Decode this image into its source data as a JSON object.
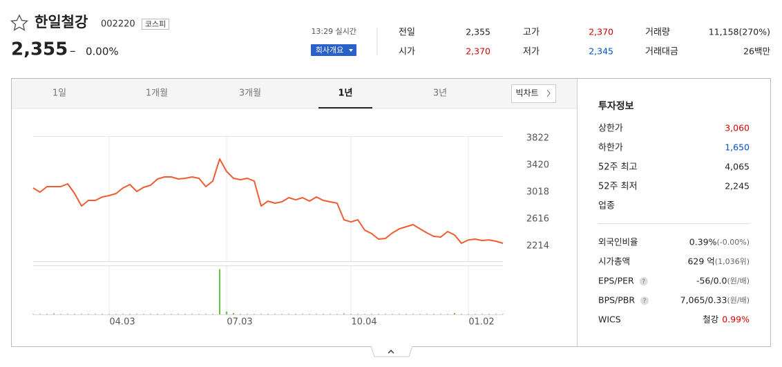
{
  "header": {
    "name": "한일철강",
    "code": "002220",
    "market": "코스피",
    "price": "2,355",
    "change_sign": "–",
    "change": "0.00%",
    "time": "13:29 실시간",
    "company_button": "회사개요"
  },
  "summary": [
    {
      "label": "전일",
      "value": "2,355"
    },
    {
      "label": "시가",
      "value": "2,370",
      "color": "#d60000"
    },
    {
      "label": "고가",
      "value": "2,370",
      "color": "#d60000"
    },
    {
      "label": "저가",
      "value": "2,345",
      "color": "#0051c7"
    },
    {
      "label": "거래량",
      "value": "11,158(270%)"
    },
    {
      "label": "거래대금",
      "value": "26백만"
    }
  ],
  "tabs": {
    "items": [
      "1일",
      "1개월",
      "3개월",
      "1년",
      "3년"
    ],
    "active": 3,
    "big_chart": "빅차트"
  },
  "chart_data": [
    {
      "type": "line",
      "color": "#f15a31",
      "values": [
        3080,
        3018,
        3100,
        3100,
        3100,
        3142,
        2997,
        2812,
        2894,
        2894,
        2946,
        2966,
        2997,
        3080,
        3131,
        3028,
        3090,
        3121,
        3214,
        3245,
        3245,
        3214,
        3224,
        3245,
        3224,
        3100,
        3183,
        3513,
        3327,
        3224,
        3203,
        3224,
        3183,
        2812,
        2884,
        2853,
        2874,
        2935,
        2904,
        2935,
        2884,
        2946,
        2894,
        2874,
        2853,
        2605,
        2574,
        2605,
        2451,
        2399,
        2317,
        2327,
        2410,
        2471,
        2502,
        2533,
        2471,
        2410,
        2358,
        2348,
        2430,
        2379,
        2255,
        2306,
        2317,
        2296,
        2306,
        2286,
        2255
      ],
      "xlim": [
        0,
        68
      ],
      "ylim": [
        1987,
        3853
      ],
      "yticks": [
        2214,
        2616,
        3018,
        3420,
        3822
      ],
      "xticks": [
        {
          "value": 11,
          "label": "04.03"
        },
        {
          "value": 28,
          "label": "07.03"
        },
        {
          "value": 46,
          "label": "10.04"
        },
        {
          "value": 63,
          "label": "01.02"
        }
      ]
    },
    {
      "type": "bar",
      "color": "#2db400",
      "values": [
        1,
        1,
        1,
        2,
        1,
        1,
        1,
        1,
        1,
        1,
        1,
        1,
        1,
        1,
        1,
        1,
        1,
        1,
        1,
        1,
        1,
        1,
        1,
        1,
        1,
        1,
        1,
        95,
        6,
        3,
        1,
        1,
        1,
        1,
        1,
        1,
        1,
        1,
        1,
        1,
        1,
        1,
        1,
        1,
        1,
        2,
        1,
        1,
        1,
        1,
        1,
        1,
        1,
        1,
        1,
        1,
        1,
        1,
        1,
        1,
        1,
        3,
        1,
        1,
        1,
        1,
        1,
        1,
        1
      ],
      "xlim": [
        0,
        68
      ],
      "ylim": [
        0,
        100
      ]
    }
  ],
  "invest_info": {
    "title": "투자정보",
    "rows": [
      {
        "label": "상한가",
        "value": "3,060",
        "color": "#d60000"
      },
      {
        "label": "하한가",
        "value": "1,650",
        "color": "#0051c7"
      },
      {
        "label": "52주 최고",
        "value": "4,065"
      },
      {
        "label": "52주 최저",
        "value": "2,245"
      },
      {
        "label": "업종"
      }
    ],
    "rows2": [
      {
        "label": "외국인비율",
        "value": "0.39%",
        "note": "(-0.00%)"
      },
      {
        "label": "시가총액",
        "value": "629 억",
        "note": "(1,036위)"
      },
      {
        "label": "EPS/PER",
        "help": "?",
        "value": "-56/0.0",
        "note": "(원/배)"
      },
      {
        "label": "BPS/PBR",
        "help": "?",
        "value": "7,065/0.33",
        "note": "(원/배)"
      },
      {
        "label": "WICS",
        "value": "철강",
        "note": "0.99%",
        "note_color": "#d60000"
      }
    ]
  }
}
